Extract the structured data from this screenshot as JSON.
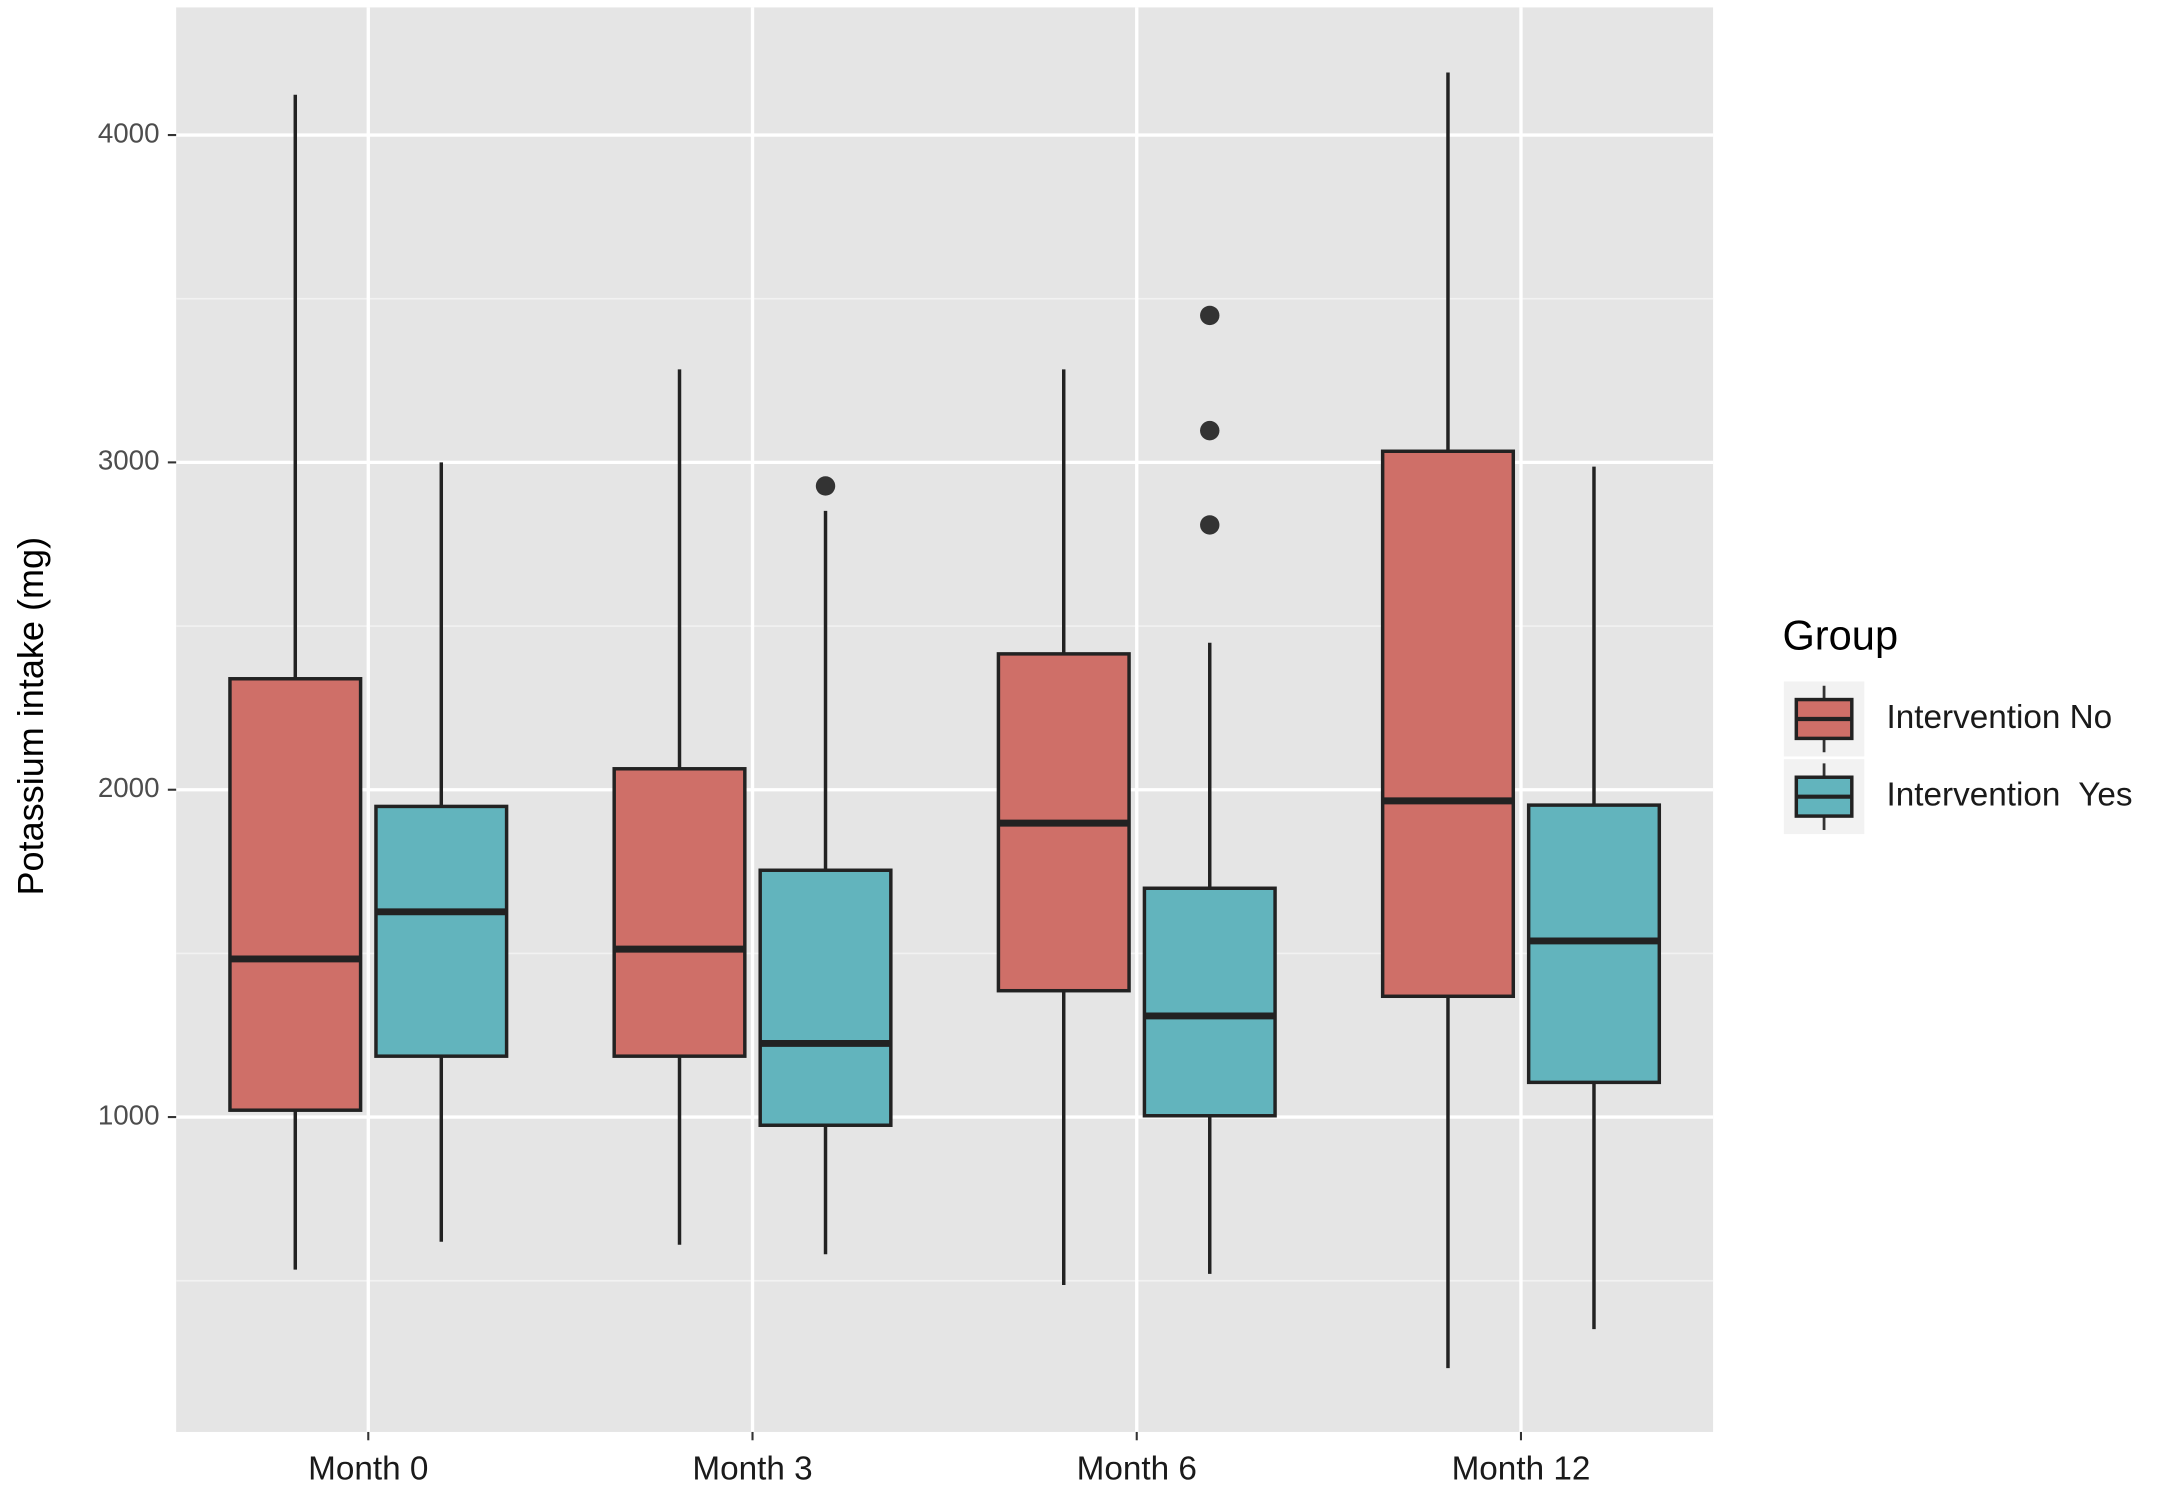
{
  "chart_data": {
    "type": "box",
    "y_label": "Potassium intake (mg)",
    "categories": [
      "Month 0",
      "Month 3",
      "Month 6",
      "Month 12"
    ],
    "ylim": [
      38,
      4390
    ],
    "yticks": [
      1000,
      2000,
      3000,
      4000
    ],
    "minor_yticks": [
      500,
      1500,
      2500,
      3500
    ],
    "grid": true,
    "legend_title": "Group",
    "legend_position": "right",
    "series": [
      {
        "name": "Intervention No",
        "color": "#cf6f68",
        "values": [
          {
            "whislo": 534,
            "q1": 1021,
            "med": 1483,
            "q3": 2339,
            "whishi": 4123,
            "fliers": []
          },
          {
            "whislo": 610,
            "q1": 1186,
            "med": 1513,
            "q3": 2064,
            "whishi": 3284,
            "fliers": []
          },
          {
            "whislo": 487,
            "q1": 1386,
            "med": 1898,
            "q3": 2415,
            "whishi": 3284,
            "fliers": []
          },
          {
            "whislo": 233,
            "q1": 1369,
            "med": 1966,
            "q3": 3034,
            "whishi": 4191,
            "fliers": []
          }
        ]
      },
      {
        "name": "Intervention  Yes",
        "color": "#62b4bd",
        "values": [
          {
            "whislo": 619,
            "q1": 1186,
            "med": 1627,
            "q3": 1949,
            "whishi": 3000,
            "fliers": []
          },
          {
            "whislo": 581,
            "q1": 975,
            "med": 1225,
            "q3": 1754,
            "whishi": 2852,
            "fliers": [
              2928
            ]
          },
          {
            "whislo": 521,
            "q1": 1004,
            "med": 1309,
            "q3": 1699,
            "whishi": 2449,
            "fliers": [
              3449,
              3097,
              2809
            ]
          },
          {
            "whislo": 352,
            "q1": 1106,
            "med": 1538,
            "q3": 1953,
            "whishi": 2987,
            "fliers": []
          }
        ]
      }
    ]
  }
}
